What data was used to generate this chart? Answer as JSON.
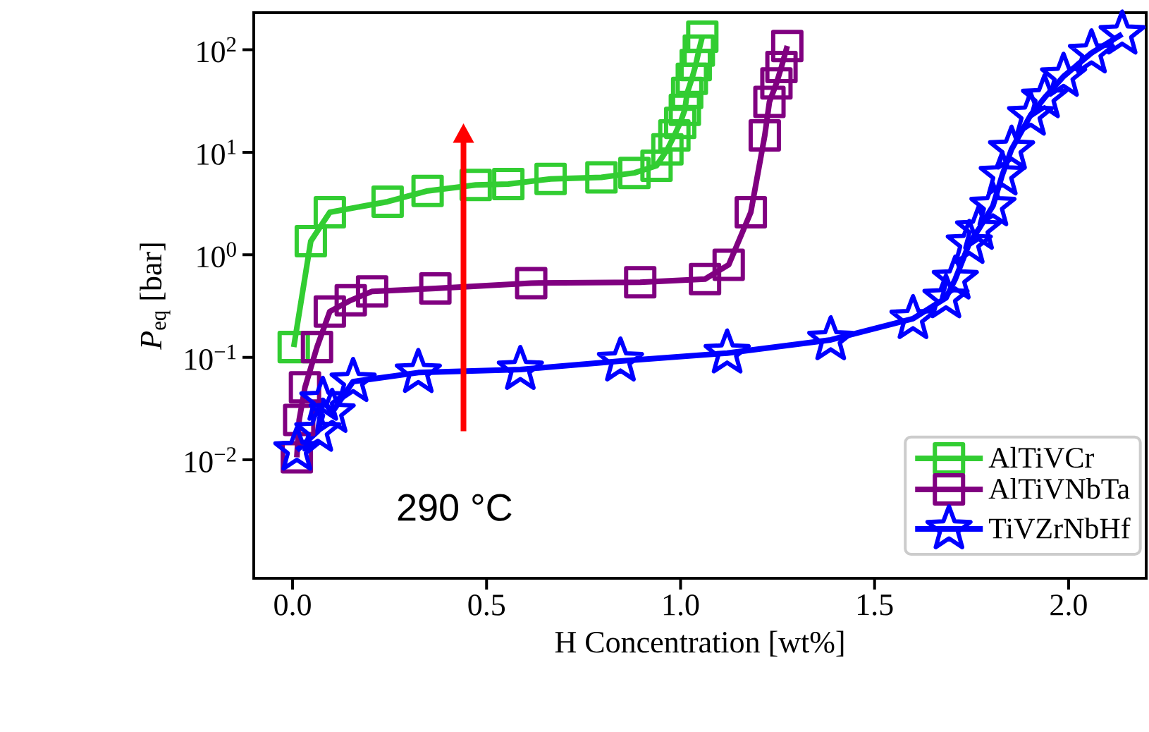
{
  "chart_data": {
    "type": "line",
    "xlabel": "H Concentration [wt%]",
    "ylabel": "*P*$_{eq}$ [bar]",
    "log": "y",
    "grid": false,
    "legend": "bottom right",
    "line_style": "solid",
    "xlim": [
      -0.1,
      2.2
    ],
    "ylim": [
      0.0007,
      230
    ],
    "xticks": [
      {
        "value": 0,
        "label": "0.0"
      },
      0.5,
      {
        "value": 1,
        "label": "1.0"
      },
      1.5,
      {
        "value": 2,
        "label": "2.0"
      }
    ],
    "yticks": [
      {
        "value": 0.01,
        "label": "10$^{−2}$"
      },
      {
        "value": 0.1,
        "label": "10$^{−1}$"
      },
      {
        "value": 1,
        "label": "10$^{0}$"
      },
      {
        "value": 10,
        "label": "10$^{1}$"
      },
      {
        "value": 100,
        "label": "10$^{2}$"
      }
    ],
    "annotations": [
      "290 °C"
    ],
    "series": [
      {
        "name": "AlTiVCr",
        "color": "#32cd32",
        "marker": "square",
        "x": [
          0.003,
          0.047,
          0.096,
          0.245,
          0.348,
          0.472,
          0.556,
          0.665,
          0.796,
          0.881,
          0.938,
          0.966,
          0.984,
          0.999,
          1.011,
          1.017,
          1.029,
          1.039,
          1.047,
          1.056
        ],
        "values": [
          0.126,
          1.36,
          2.6,
          3.3,
          4.2,
          4.8,
          4.9,
          5.5,
          5.7,
          6.3,
          7.4,
          10.7,
          14.6,
          19.4,
          26,
          38,
          52,
          71,
          98,
          134
        ]
      },
      {
        "name": "AlTiVNbTa",
        "color": "#800080",
        "marker": "square",
        "x": [
          0.011,
          0.017,
          0.032,
          0.063,
          0.096,
          0.15,
          0.205,
          0.368,
          0.615,
          0.896,
          1.063,
          1.124,
          1.181,
          1.217,
          1.229,
          1.247,
          1.26,
          1.275
        ],
        "values": [
          0.0106,
          0.0245,
          0.051,
          0.126,
          0.28,
          0.36,
          0.44,
          0.47,
          0.53,
          0.54,
          0.58,
          0.8,
          2.6,
          14.6,
          31,
          47,
          68,
          109
        ]
      },
      {
        "name": "TiVZrNbHf",
        "color": "#0000ff",
        "marker": "star",
        "x": [
          0.011,
          0.065,
          0.078,
          0.102,
          0.156,
          0.324,
          0.587,
          0.845,
          1.12,
          1.387,
          1.599,
          1.684,
          1.708,
          1.744,
          1.768,
          1.805,
          1.829,
          1.853,
          1.902,
          1.938,
          1.987,
          2.059,
          2.138
        ],
        "values": [
          0.0124,
          0.019,
          0.038,
          0.029,
          0.058,
          0.071,
          0.076,
          0.092,
          0.11,
          0.148,
          0.238,
          0.38,
          0.58,
          1.29,
          1.77,
          3.0,
          6.0,
          10.7,
          23,
          34,
          55,
          93,
          142
        ]
      }
    ]
  }
}
